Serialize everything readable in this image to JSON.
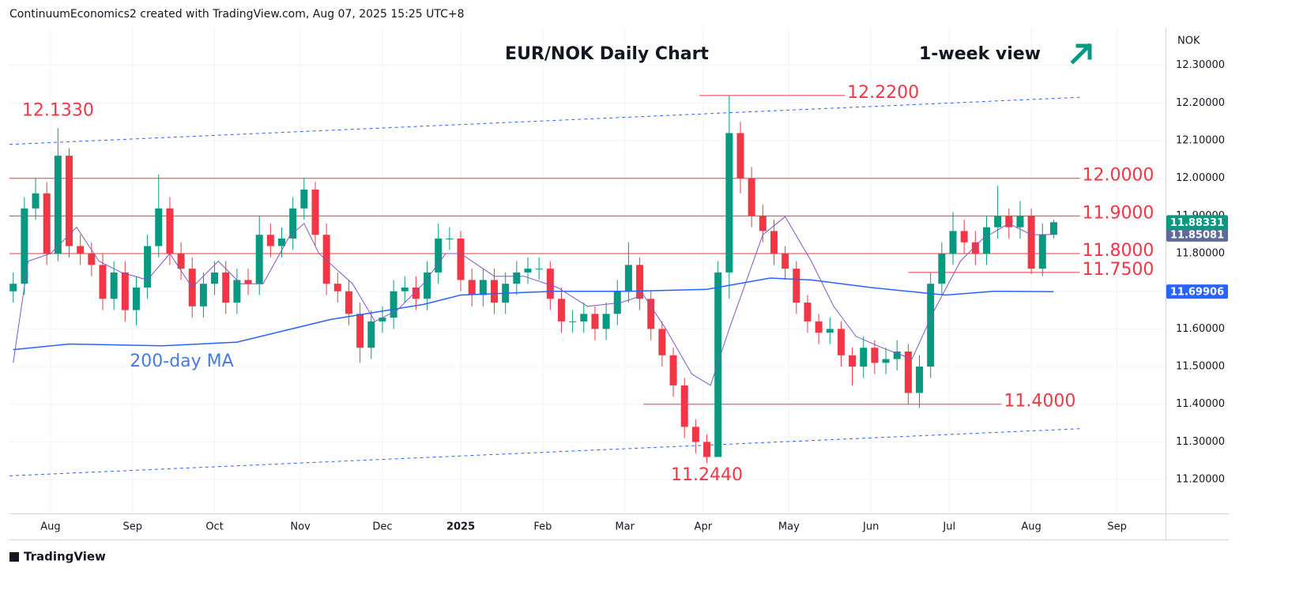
{
  "header": {
    "text": "ContinuumEconomics2 created with TradingView.com, Aug 07, 2025 15:25 UTC+8"
  },
  "footer": {
    "brand": "TradingView"
  },
  "chart_data": {
    "type": "candlestick",
    "title": "EUR/NOK Daily Chart",
    "note": "1-week view",
    "currency": "NOK",
    "up_color": "#089981",
    "down_color": "#f23645",
    "xlim": [
      -1,
      309
    ],
    "xticks": [
      {
        "value": 10,
        "label": "Aug"
      },
      {
        "value": 32,
        "label": "Sep"
      },
      {
        "value": 54,
        "label": "Oct"
      },
      {
        "value": 77,
        "label": "Nov"
      },
      {
        "value": 99,
        "label": "Dec"
      },
      {
        "value": 120,
        "label": "2025"
      },
      {
        "value": 142,
        "label": "Feb"
      },
      {
        "value": 164,
        "label": "Mar"
      },
      {
        "value": 185,
        "label": "Apr"
      },
      {
        "value": 208,
        "label": "May"
      },
      {
        "value": 230,
        "label": "Jun"
      },
      {
        "value": 251,
        "label": "Jul"
      },
      {
        "value": 273,
        "label": "Aug"
      },
      {
        "value": 296,
        "label": "Sep"
      }
    ],
    "ylim": [
      11.11,
      12.4
    ],
    "yticks": [
      {
        "value": 11.2,
        "label": "11.20000"
      },
      {
        "value": 11.3,
        "label": "11.30000"
      },
      {
        "value": 11.4,
        "label": "11.40000"
      },
      {
        "value": 11.5,
        "label": "11.50000"
      },
      {
        "value": 11.6,
        "label": "11.60000"
      },
      {
        "value": 11.7,
        "label": "11.70000"
      },
      {
        "value": 11.8,
        "label": "11.80000"
      },
      {
        "value": 11.9,
        "label": "11.90000"
      },
      {
        "value": 12.0,
        "label": "12.00000"
      },
      {
        "value": 12.1,
        "label": "12.10000"
      },
      {
        "value": 12.2,
        "label": "12.20000"
      },
      {
        "value": 12.3,
        "label": "12.30000"
      }
    ],
    "grid": true,
    "x": [
      0,
      3,
      6,
      9,
      12,
      15,
      18,
      21,
      24,
      27,
      30,
      33,
      36,
      39,
      42,
      45,
      48,
      51,
      54,
      57,
      60,
      63,
      66,
      69,
      72,
      75,
      78,
      81,
      84,
      87,
      90,
      93,
      96,
      99,
      102,
      105,
      108,
      111,
      114,
      117,
      120,
      123,
      126,
      129,
      132,
      135,
      138,
      141,
      144,
      147,
      150,
      153,
      156,
      159,
      162,
      165,
      168,
      171,
      174,
      177,
      180,
      183,
      186,
      189,
      192,
      195,
      198,
      201,
      204,
      207,
      210,
      213,
      216,
      219,
      222,
      225,
      228,
      231,
      234,
      237,
      240,
      243,
      246,
      249,
      252,
      255,
      258,
      261,
      264,
      267,
      270,
      273,
      276,
      279
    ],
    "candles": {
      "open": [
        11.7,
        11.72,
        11.92,
        11.96,
        11.8,
        12.06,
        11.82,
        11.8,
        11.77,
        11.68,
        11.75,
        11.65,
        11.71,
        11.82,
        11.92,
        11.8,
        11.76,
        11.66,
        11.72,
        11.75,
        11.67,
        11.73,
        11.72,
        11.85,
        11.82,
        11.84,
        11.92,
        11.97,
        11.85,
        11.72,
        11.7,
        11.64,
        11.55,
        11.62,
        11.63,
        11.7,
        11.71,
        11.68,
        11.75,
        11.84,
        11.84,
        11.73,
        11.69,
        11.73,
        11.67,
        11.72,
        11.75,
        11.76,
        11.76,
        11.68,
        11.62,
        11.62,
        11.64,
        11.6,
        11.64,
        11.7,
        11.77,
        11.68,
        11.6,
        11.53,
        11.45,
        11.34,
        11.3,
        11.26,
        11.75,
        12.12,
        12.0,
        11.9,
        11.86,
        11.8,
        11.76,
        11.67,
        11.62,
        11.59,
        11.6,
        11.53,
        11.5,
        11.55,
        11.51,
        11.52,
        11.54,
        11.43,
        11.5,
        11.72,
        11.8,
        11.86,
        11.83,
        11.8,
        11.87,
        11.9,
        11.87,
        11.9,
        11.76,
        11.85
      ],
      "high": [
        11.75,
        11.95,
        12.0,
        11.99,
        12.133,
        12.08,
        11.85,
        11.83,
        11.8,
        11.78,
        11.78,
        11.74,
        11.85,
        12.01,
        11.95,
        11.83,
        11.79,
        11.75,
        11.78,
        11.78,
        11.76,
        11.76,
        11.9,
        11.88,
        11.87,
        11.95,
        12.0,
        11.99,
        11.88,
        11.75,
        11.73,
        11.67,
        11.65,
        11.66,
        11.73,
        11.74,
        11.74,
        11.78,
        11.88,
        11.87,
        11.86,
        11.76,
        11.76,
        11.76,
        11.75,
        11.78,
        11.79,
        11.79,
        11.78,
        11.71,
        11.65,
        11.67,
        11.66,
        11.67,
        11.73,
        11.83,
        11.79,
        11.7,
        11.62,
        11.55,
        11.47,
        11.36,
        11.32,
        11.78,
        12.22,
        12.15,
        12.03,
        11.93,
        11.89,
        11.82,
        11.78,
        11.69,
        11.64,
        11.63,
        11.62,
        11.55,
        11.58,
        11.57,
        11.55,
        11.57,
        11.56,
        11.53,
        11.75,
        11.83,
        11.91,
        11.89,
        11.86,
        11.9,
        11.98,
        11.92,
        11.94,
        11.92,
        11.88,
        11.89
      ],
      "low": [
        11.67,
        11.69,
        11.89,
        11.77,
        11.78,
        11.79,
        11.77,
        11.74,
        11.65,
        11.65,
        11.62,
        11.61,
        11.68,
        11.79,
        11.77,
        11.73,
        11.63,
        11.63,
        11.69,
        11.64,
        11.64,
        11.69,
        11.69,
        11.79,
        11.79,
        11.81,
        11.89,
        11.82,
        11.69,
        11.67,
        11.61,
        11.51,
        11.52,
        11.59,
        11.6,
        11.67,
        11.65,
        11.65,
        11.72,
        11.81,
        11.7,
        11.66,
        11.66,
        11.64,
        11.64,
        11.69,
        11.72,
        11.73,
        11.65,
        11.59,
        11.59,
        11.59,
        11.57,
        11.57,
        11.61,
        11.67,
        11.65,
        11.57,
        11.5,
        11.42,
        11.31,
        11.27,
        11.244,
        11.27,
        11.68,
        11.96,
        11.87,
        11.83,
        11.77,
        11.73,
        11.64,
        11.59,
        11.56,
        11.56,
        11.5,
        11.45,
        11.47,
        11.48,
        11.48,
        11.49,
        11.4,
        11.39,
        11.47,
        11.69,
        11.77,
        11.8,
        11.77,
        11.77,
        11.84,
        11.84,
        11.84,
        11.745,
        11.74,
        11.84
      ],
      "close": [
        11.72,
        11.92,
        11.96,
        11.8,
        12.06,
        11.82,
        11.8,
        11.77,
        11.68,
        11.75,
        11.65,
        11.71,
        11.82,
        11.92,
        11.8,
        11.76,
        11.66,
        11.72,
        11.75,
        11.67,
        11.73,
        11.72,
        11.85,
        11.82,
        11.84,
        11.92,
        11.97,
        11.85,
        11.72,
        11.7,
        11.64,
        11.55,
        11.62,
        11.63,
        11.7,
        11.71,
        11.68,
        11.75,
        11.84,
        11.84,
        11.73,
        11.69,
        11.73,
        11.67,
        11.72,
        11.75,
        11.76,
        11.76,
        11.68,
        11.62,
        11.62,
        11.64,
        11.6,
        11.64,
        11.7,
        11.77,
        11.68,
        11.6,
        11.53,
        11.45,
        11.34,
        11.3,
        11.26,
        11.75,
        12.12,
        12.0,
        11.9,
        11.86,
        11.8,
        11.76,
        11.67,
        11.62,
        11.59,
        11.6,
        11.53,
        11.5,
        11.55,
        11.51,
        11.52,
        11.54,
        11.43,
        11.5,
        11.72,
        11.8,
        11.86,
        11.83,
        11.8,
        11.87,
        11.9,
        11.87,
        11.9,
        11.76,
        11.85,
        11.88331
      ]
    },
    "series": [
      {
        "name": "200-day MA",
        "color": "#2962ff",
        "x": [
          0,
          15,
          40,
          60,
          85,
          110,
          120,
          145,
          165,
          186,
          203,
          214,
          230,
          250,
          263,
          279
        ],
        "values": [
          11.545,
          11.56,
          11.555,
          11.565,
          11.625,
          11.665,
          11.69,
          11.7,
          11.7,
          11.705,
          11.735,
          11.73,
          11.71,
          11.69,
          11.7,
          11.69906
        ]
      },
      {
        "color": "#7e57c2",
        "x": [
          0,
          4,
          10,
          17,
          23,
          29,
          36,
          42,
          48,
          55,
          61,
          67,
          74,
          78,
          82,
          91,
          97,
          103,
          110,
          116,
          120,
          129,
          137,
          146,
          154,
          163,
          169,
          175,
          182,
          187,
          192,
          201,
          207,
          214,
          220,
          226,
          233,
          241,
          247,
          254,
          260,
          267,
          273,
          279
        ],
        "values": [
          11.51,
          11.78,
          11.8,
          11.87,
          11.78,
          11.75,
          11.73,
          11.8,
          11.71,
          11.78,
          11.72,
          11.72,
          11.845,
          11.88,
          11.8,
          11.72,
          11.62,
          11.65,
          11.72,
          11.8,
          11.8,
          11.74,
          11.74,
          11.71,
          11.66,
          11.67,
          11.69,
          11.6,
          11.48,
          11.45,
          11.6,
          11.85,
          11.898,
          11.78,
          11.66,
          11.58,
          11.55,
          11.52,
          11.65,
          11.78,
          11.84,
          11.88,
          11.85,
          11.85081
        ]
      }
    ],
    "levels": [
      {
        "value": 12.22,
        "label": "12.2200"
      },
      {
        "value": 12.0,
        "label": "12.0000"
      },
      {
        "value": 11.9,
        "label": "11.9000"
      },
      {
        "value": 11.8,
        "label": "11.8000"
      },
      {
        "value": 11.75,
        "label": "11.7500"
      },
      {
        "value": 11.4,
        "label": "11.4000"
      }
    ],
    "level_color": "#f23645",
    "price_notes": [
      {
        "value": 12.133,
        "label": "12.1330"
      },
      {
        "value": 11.244,
        "label": "11.2440"
      }
    ],
    "trendlines": [
      {
        "x": [
          -1,
          286
        ],
        "y": [
          12.09,
          12.215
        ]
      },
      {
        "x": [
          -1,
          286
        ],
        "y": [
          11.21,
          11.335
        ]
      }
    ],
    "trend_color": "#2962ff"
  }
}
